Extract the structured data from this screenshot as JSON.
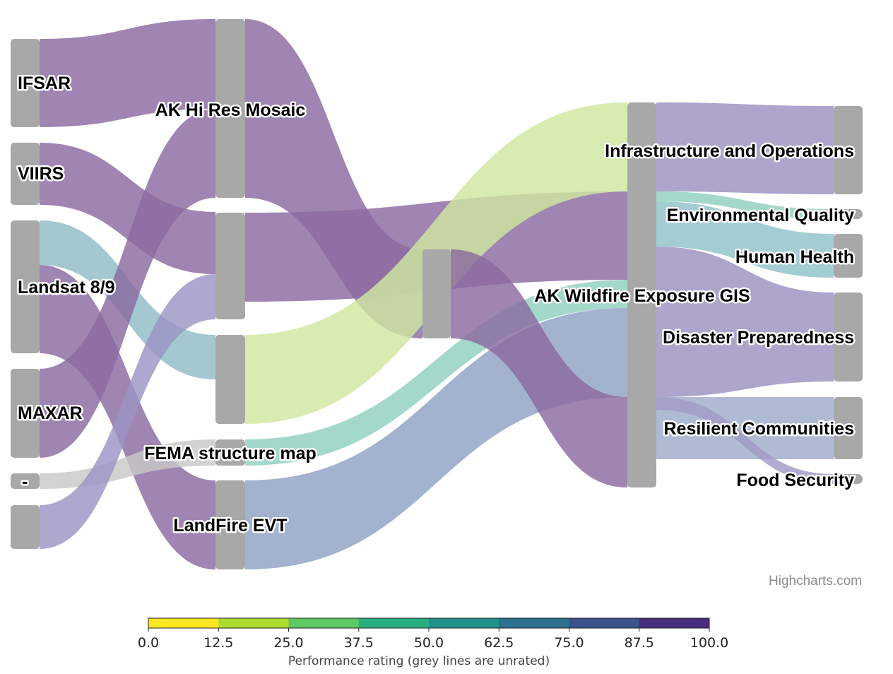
{
  "chart_data": {
    "type": "sankey",
    "nodes": [
      {
        "id": "IFSAR",
        "label": "IFSAR",
        "column": 0
      },
      {
        "id": "VIIRS",
        "label": "VIIRS",
        "column": 0
      },
      {
        "id": "Landsat",
        "label": "Landsat 8/9",
        "column": 0
      },
      {
        "id": "MAXAR",
        "label": "MAXAR",
        "column": 0
      },
      {
        "id": "dash",
        "label": "-",
        "column": 0
      },
      {
        "id": "blank",
        "label": "",
        "column": 0
      },
      {
        "id": "AKHiRes",
        "label": "AK Hi Res Mosaic",
        "column": 1
      },
      {
        "id": "Mid1",
        "label": "",
        "column": 1
      },
      {
        "id": "Mid2",
        "label": "",
        "column": 1
      },
      {
        "id": "FEMA",
        "label": "FEMA structure map",
        "column": 1
      },
      {
        "id": "LandFire",
        "label": "LandFire EVT",
        "column": 1
      },
      {
        "id": "Mid3",
        "label": "",
        "column": 2
      },
      {
        "id": "AKWildfire",
        "label": "AK Wildfire Exposure GIS",
        "column": 3
      },
      {
        "id": "Infra",
        "label": "Infrastructure and Operations",
        "column": 4
      },
      {
        "id": "Env",
        "label": "Environmental Quality",
        "column": 4
      },
      {
        "id": "Health",
        "label": "Human Health",
        "column": 4
      },
      {
        "id": "Disaster",
        "label": "Disaster Preparedness",
        "column": 4
      },
      {
        "id": "Resilient",
        "label": "Resilient Communities",
        "column": 4
      },
      {
        "id": "Food",
        "label": "Food Security",
        "column": 4
      }
    ],
    "links": [
      {
        "from": "IFSAR",
        "to": "AKHiRes",
        "weight": 1.0,
        "color": "#8b6aa1"
      },
      {
        "from": "VIIRS",
        "to": "Mid1",
        "weight": 0.7,
        "color": "#8b6aa1"
      },
      {
        "from": "Landsat",
        "to": "Mid2",
        "weight": 0.5,
        "color": "#8fbcc4"
      },
      {
        "from": "Landsat",
        "to": "LandFire",
        "weight": 1.0,
        "color": "#8b6aa1"
      },
      {
        "from": "MAXAR",
        "to": "AKHiRes",
        "weight": 1.0,
        "color": "#8b6aa1"
      },
      {
        "from": "dash",
        "to": "FEMA",
        "weight": 0.2,
        "color": "#c8c8c8"
      },
      {
        "from": "blank",
        "to": "Mid1",
        "weight": 0.5,
        "color": "#9b95c4"
      },
      {
        "from": "AKHiRes",
        "to": "Mid3",
        "weight": 1.0,
        "color": "#8b6aa1"
      },
      {
        "from": "Mid1",
        "to": "AKWildfire",
        "weight": 1.0,
        "color": "#8b6aa1"
      },
      {
        "from": "Mid2",
        "to": "AKWildfire",
        "weight": 1.0,
        "color": "#cfe7a0"
      },
      {
        "from": "FEMA",
        "to": "AKWildfire",
        "weight": 0.2,
        "color": "#8fcfc0"
      },
      {
        "from": "LandFire",
        "to": "AKWildfire",
        "weight": 1.0,
        "color": "#8ea1c4"
      },
      {
        "from": "Mid3",
        "to": "AKWildfire",
        "weight": 1.0,
        "color": "#8b6aa1"
      },
      {
        "from": "AKWildfire",
        "to": "Infra",
        "weight": 1.0,
        "color": "#9b91bf"
      },
      {
        "from": "AKWildfire",
        "to": "Env",
        "weight": 0.05,
        "color": "#8fcfc0"
      },
      {
        "from": "AKWildfire",
        "to": "Health",
        "weight": 0.45,
        "color": "#8fc2c9"
      },
      {
        "from": "AKWildfire",
        "to": "Disaster",
        "weight": 1.0,
        "color": "#9b91bf"
      },
      {
        "from": "AKWildfire",
        "to": "Resilient",
        "weight": 0.7,
        "color": "#9cacc8"
      },
      {
        "from": "AKWildfire",
        "to": "Food",
        "weight": 0.05,
        "color": "#a19ac8"
      }
    ],
    "colorAxis": {
      "min": 0,
      "max": 100,
      "ticks": [
        "0.0",
        "12.5",
        "25.0",
        "37.5",
        "50.0",
        "62.5",
        "75.0",
        "87.5",
        "100.0"
      ],
      "colors": [
        "#fde725",
        "#addc30",
        "#5ec962",
        "#28ae80",
        "#21918c",
        "#2c728e",
        "#3b528b",
        "#472d7b",
        "#440154"
      ],
      "title": "Performance rating (grey lines are unrated)"
    },
    "credit": "Highcharts.com"
  }
}
